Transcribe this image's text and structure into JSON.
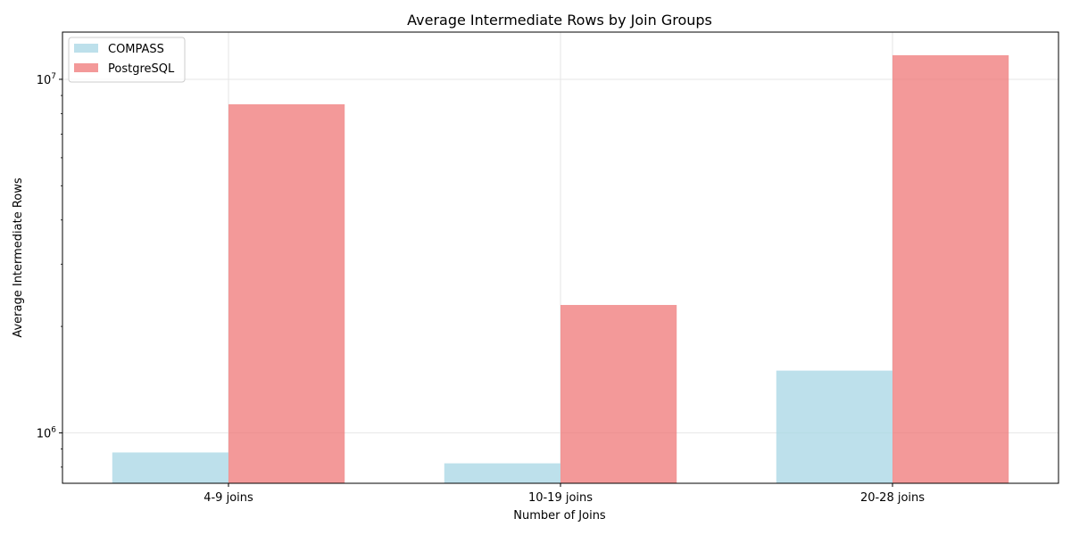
{
  "chart_data": {
    "type": "bar",
    "title": "Average Intermediate Rows by Join Groups",
    "xlabel": "Number of Joins",
    "ylabel": "Average Intermediate Rows",
    "categories": [
      "4-9 joins",
      "10-19 joins",
      "20-28 joins"
    ],
    "series": [
      {
        "name": "COMPASS",
        "values": [
          880000,
          820000,
          1500000
        ],
        "color": "#add8e6"
      },
      {
        "name": "PostgreSQL",
        "values": [
          8500000,
          2300000,
          11700000
        ],
        "color": "#f08080"
      }
    ],
    "y_scale": "log",
    "ylim": [
      720000,
      13600000
    ],
    "y_ticks": [
      {
        "value": 1000000,
        "base": "10",
        "exponent": "6"
      },
      {
        "value": 10000000,
        "base": "10",
        "exponent": "7"
      }
    ],
    "bar_opacity": 0.8,
    "grid": true,
    "legend_position": "top-left"
  }
}
